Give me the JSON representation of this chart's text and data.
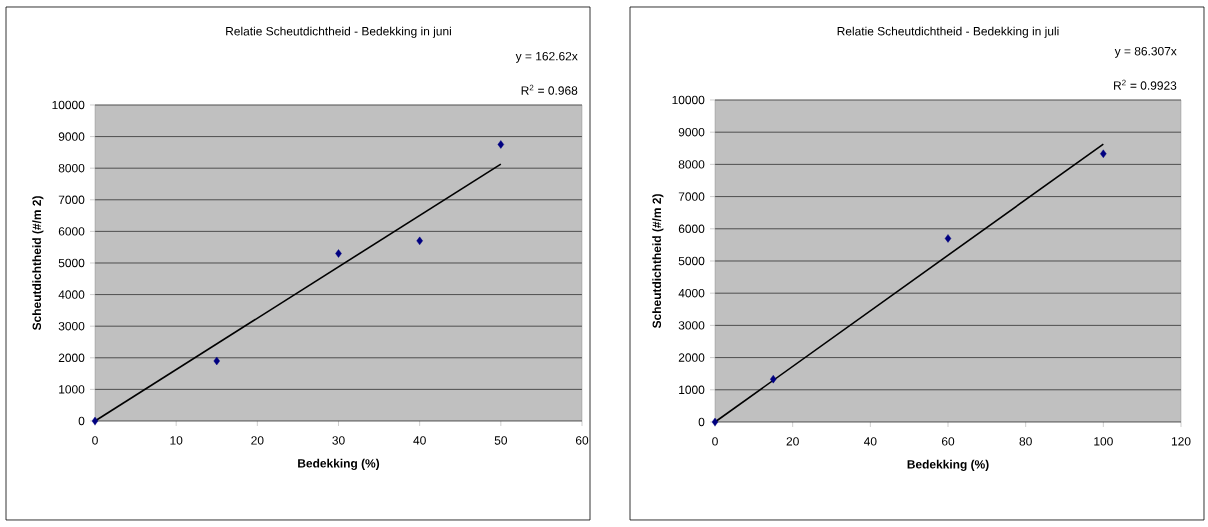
{
  "chart_data": [
    {
      "type": "scatter",
      "title": "Relatie Scheutdichtheid - Bedekking in juni",
      "xlabel": "Bedekking (%)",
      "ylabel": "Scheutdichtheid (#/m 2)",
      "annotations": [
        "y = 162.62x",
        "R$^{2}$ = 0.968"
      ],
      "xlim": [
        0,
        60
      ],
      "xticks": [
        0,
        10,
        20,
        30,
        40,
        50,
        60
      ],
      "ylim": [
        0,
        10000
      ],
      "yticks": [
        0,
        1000,
        2000,
        3000,
        4000,
        5000,
        6000,
        7000,
        8000,
        9000,
        10000
      ],
      "grid": "y",
      "series": [
        {
          "type": "scatter",
          "color": "#000080",
          "marker": "diamond",
          "x": [
            0,
            15,
            30,
            40,
            50
          ],
          "values": [
            0,
            1900,
            5300,
            5700,
            8750
          ]
        },
        {
          "type": "line",
          "color": "#000000",
          "marker": "none",
          "x": [
            0,
            50
          ],
          "values": [
            0,
            8130
          ]
        }
      ]
    },
    {
      "type": "scatter",
      "title": "Relatie Scheutdichtheid - Bedekking in juli",
      "xlabel": "Bedekking (%)",
      "ylabel": "Scheutdichtheid (#/m 2)",
      "annotations": [
        "y = 86.307x",
        "R$^{2}$ = 0.9923"
      ],
      "xlim": [
        0,
        120
      ],
      "xticks": [
        0,
        20,
        40,
        60,
        80,
        100,
        120
      ],
      "ylim": [
        0,
        10000
      ],
      "yticks": [
        0,
        1000,
        2000,
        3000,
        4000,
        5000,
        6000,
        7000,
        8000,
        9000,
        10000
      ],
      "grid": "y",
      "series": [
        {
          "type": "scatter",
          "color": "#000080",
          "marker": "diamond",
          "x": [
            0,
            15,
            60,
            100
          ],
          "values": [
            0,
            1330,
            5700,
            8330
          ]
        },
        {
          "type": "line",
          "color": "#000000",
          "marker": "none",
          "x": [
            0,
            100
          ],
          "values": [
            0,
            8630
          ]
        }
      ]
    }
  ]
}
